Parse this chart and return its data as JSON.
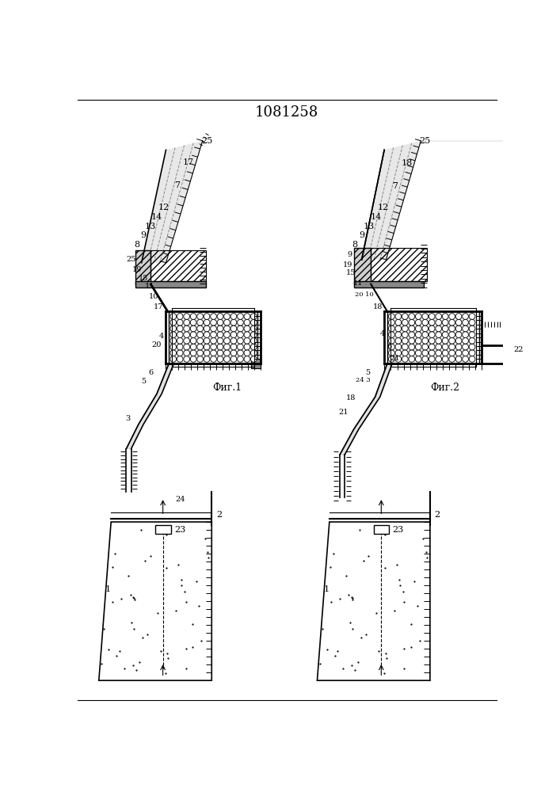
{
  "title": "1081258",
  "title_fontsize": 13,
  "fig1_label": "Фиг.1",
  "fig2_label": "Фиг.2",
  "bg_color": "#ffffff"
}
